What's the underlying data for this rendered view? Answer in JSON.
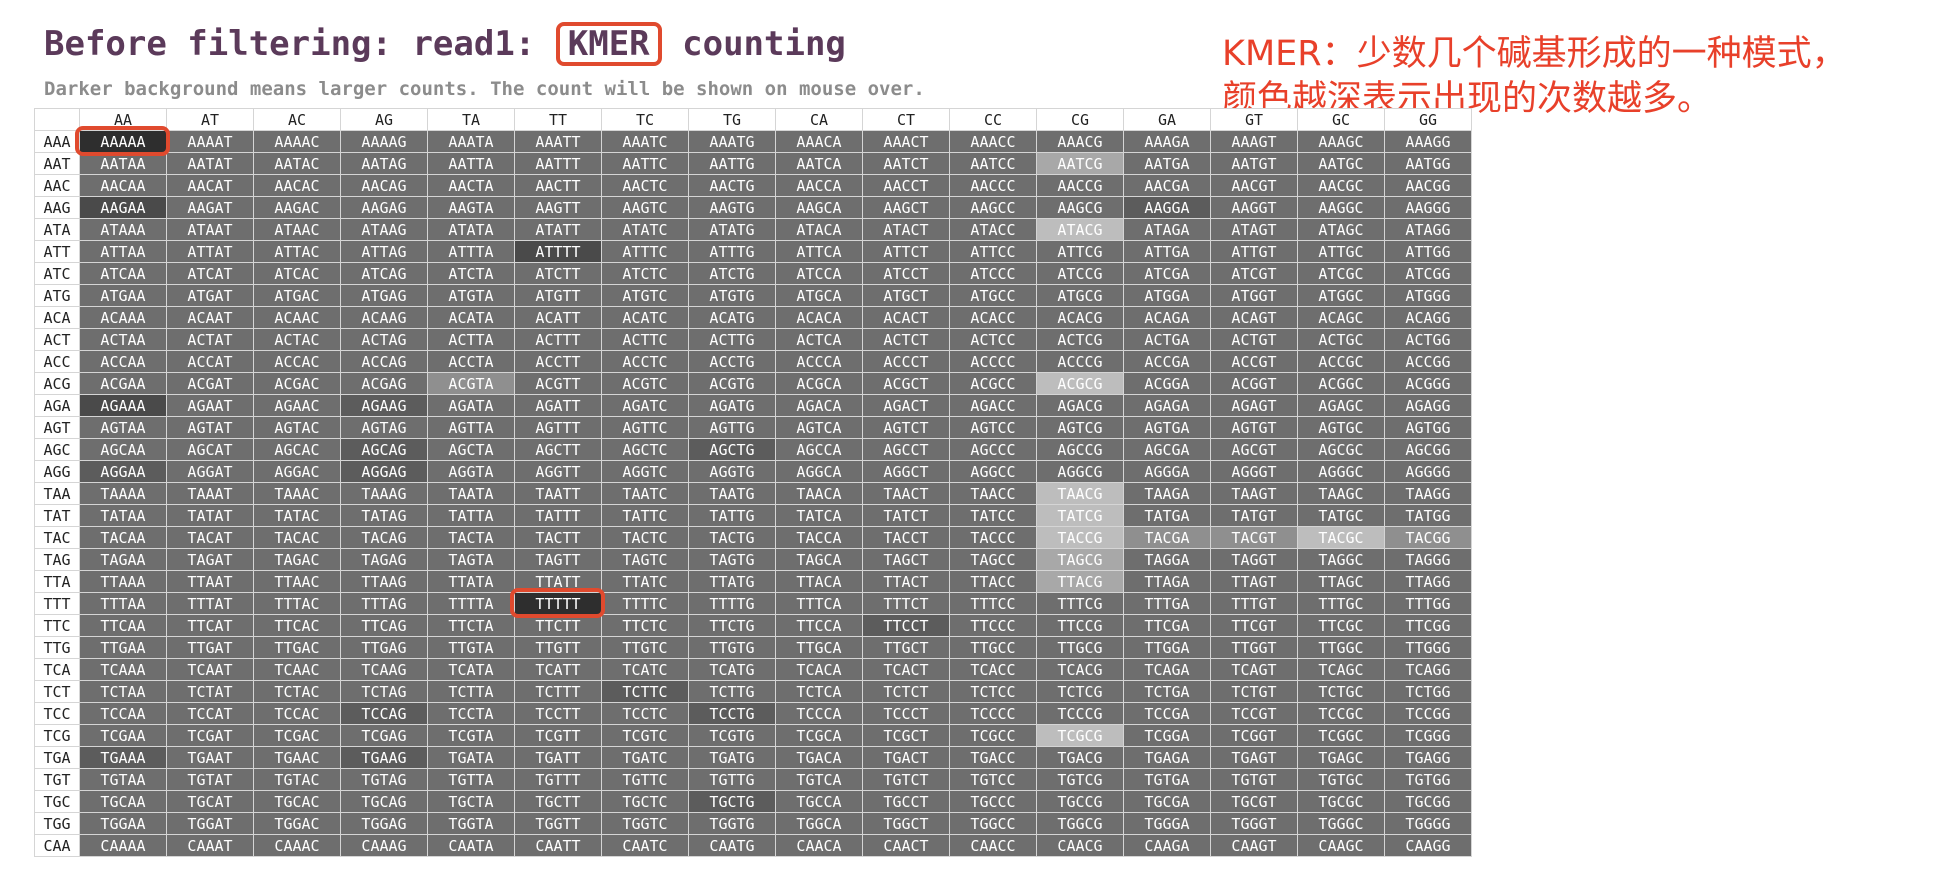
{
  "header": {
    "title_prefix": "Before filtering: read1:",
    "title_kmer": "KMER",
    "title_suffix": "counting",
    "subtitle": "Darker background means larger counts. The count will be shown on mouse over."
  },
  "annotation": {
    "line1": "KMER：少数几个碱基形成的一种模式，",
    "line2": "颜色越深表示出现的次数越多。"
  },
  "kmer_table": {
    "columns": [
      "AA",
      "AT",
      "AC",
      "AG",
      "TA",
      "TT",
      "TC",
      "TG",
      "CA",
      "CT",
      "CC",
      "CG",
      "GA",
      "GT",
      "GC",
      "GG"
    ],
    "rows": [
      "AAA",
      "AAT",
      "AAC",
      "AAG",
      "ATA",
      "ATT",
      "ATC",
      "ATG",
      "ACA",
      "ACT",
      "ACC",
      "ACG",
      "AGA",
      "AGT",
      "AGC",
      "AGG",
      "TAA",
      "TAT",
      "TAC",
      "TAG",
      "TTA",
      "TTT",
      "TTC",
      "TTG",
      "TCA",
      "TCT",
      "TCC",
      "TCG",
      "TGA",
      "TGT",
      "TGC",
      "TGG",
      "CAA"
    ],
    "shades": [
      "0000000000000000000000000000000000",
      "..."
    ],
    "shade_rows": [
      [
        0,
        3,
        3,
        3,
        3,
        3,
        3,
        3,
        3,
        3,
        3,
        3,
        3,
        3,
        3,
        3
      ],
      [
        3,
        3,
        3,
        3,
        3,
        3,
        3,
        3,
        3,
        3,
        3,
        5,
        3,
        3,
        3,
        3
      ],
      [
        3,
        3,
        3,
        3,
        3,
        3,
        3,
        3,
        3,
        3,
        3,
        3,
        3,
        3,
        3,
        3
      ],
      [
        1,
        3,
        3,
        3,
        3,
        3,
        3,
        3,
        3,
        3,
        3,
        3,
        2,
        3,
        3,
        3
      ],
      [
        3,
        3,
        3,
        3,
        3,
        3,
        3,
        3,
        3,
        3,
        3,
        6,
        3,
        3,
        3,
        3
      ],
      [
        3,
        3,
        3,
        3,
        3,
        1,
        3,
        3,
        3,
        3,
        3,
        3,
        3,
        3,
        3,
        3
      ],
      [
        3,
        3,
        3,
        3,
        3,
        3,
        3,
        3,
        3,
        3,
        3,
        3,
        3,
        3,
        3,
        3
      ],
      [
        3,
        3,
        3,
        3,
        3,
        3,
        3,
        3,
        3,
        3,
        3,
        3,
        3,
        3,
        3,
        3
      ],
      [
        3,
        3,
        3,
        3,
        3,
        3,
        3,
        3,
        3,
        3,
        3,
        3,
        3,
        3,
        3,
        3
      ],
      [
        3,
        3,
        3,
        3,
        3,
        3,
        3,
        3,
        3,
        3,
        3,
        3,
        3,
        3,
        3,
        3
      ],
      [
        3,
        3,
        3,
        3,
        3,
        3,
        3,
        3,
        3,
        3,
        3,
        3,
        3,
        3,
        3,
        3
      ],
      [
        3,
        3,
        3,
        3,
        4,
        3,
        3,
        3,
        3,
        3,
        3,
        6,
        3,
        3,
        3,
        3
      ],
      [
        1,
        3,
        3,
        2,
        3,
        3,
        3,
        3,
        3,
        3,
        3,
        3,
        3,
        3,
        3,
        3
      ],
      [
        3,
        3,
        3,
        3,
        3,
        3,
        3,
        3,
        3,
        3,
        3,
        3,
        3,
        3,
        3,
        3
      ],
      [
        3,
        3,
        3,
        2,
        3,
        3,
        3,
        2,
        3,
        3,
        3,
        3,
        3,
        3,
        3,
        3
      ],
      [
        2,
        3,
        3,
        2,
        3,
        3,
        3,
        3,
        3,
        3,
        3,
        3,
        3,
        3,
        3,
        3
      ],
      [
        3,
        3,
        3,
        3,
        3,
        3,
        3,
        3,
        3,
        3,
        3,
        6,
        3,
        3,
        3,
        3
      ],
      [
        3,
        3,
        3,
        3,
        3,
        3,
        3,
        3,
        3,
        3,
        3,
        6,
        3,
        3,
        3,
        3
      ],
      [
        3,
        3,
        3,
        3,
        3,
        3,
        3,
        3,
        3,
        3,
        3,
        6,
        4,
        4,
        6,
        4
      ],
      [
        3,
        3,
        3,
        3,
        3,
        3,
        3,
        3,
        3,
        3,
        3,
        5,
        3,
        3,
        3,
        3
      ],
      [
        3,
        3,
        3,
        3,
        3,
        3,
        3,
        3,
        3,
        3,
        3,
        5,
        3,
        3,
        3,
        3
      ],
      [
        3,
        3,
        3,
        3,
        3,
        0,
        3,
        3,
        3,
        3,
        3,
        3,
        3,
        3,
        3,
        3
      ],
      [
        3,
        3,
        3,
        3,
        3,
        3,
        3,
        3,
        3,
        2,
        3,
        3,
        3,
        3,
        3,
        3
      ],
      [
        3,
        3,
        3,
        3,
        3,
        3,
        3,
        3,
        3,
        3,
        3,
        3,
        3,
        3,
        3,
        3
      ],
      [
        3,
        3,
        3,
        3,
        3,
        3,
        3,
        3,
        3,
        3,
        3,
        3,
        3,
        3,
        3,
        3
      ],
      [
        3,
        3,
        3,
        3,
        3,
        3,
        2,
        3,
        3,
        3,
        3,
        3,
        3,
        3,
        3,
        3
      ],
      [
        3,
        3,
        3,
        2,
        3,
        3,
        3,
        2,
        3,
        3,
        3,
        3,
        3,
        3,
        3,
        3
      ],
      [
        3,
        3,
        3,
        3,
        3,
        3,
        3,
        3,
        3,
        3,
        3,
        6,
        3,
        3,
        3,
        3
      ],
      [
        2,
        3,
        3,
        2,
        3,
        3,
        3,
        3,
        3,
        3,
        3,
        3,
        3,
        3,
        3,
        3
      ],
      [
        3,
        3,
        3,
        3,
        3,
        3,
        3,
        3,
        3,
        3,
        3,
        3,
        3,
        3,
        3,
        3
      ],
      [
        3,
        3,
        3,
        3,
        3,
        3,
        3,
        2,
        3,
        3,
        3,
        3,
        3,
        3,
        3,
        3
      ],
      [
        3,
        3,
        3,
        3,
        3,
        3,
        3,
        3,
        3,
        3,
        3,
        3,
        3,
        3,
        3,
        3
      ],
      [
        3,
        3,
        3,
        3,
        3,
        3,
        3,
        3,
        3,
        3,
        3,
        3,
        3,
        3,
        3,
        3
      ]
    ],
    "shade_colors": [
      "#2e2e2e",
      "#4a4a4a",
      "#5c5c5c",
      "#6e6e6e",
      "#8f8f8f",
      "#a8a8a8",
      "#bdbdbd"
    ],
    "highlighted_cells": [
      {
        "row": "AAA",
        "col": "AA"
      },
      {
        "row": "TTT",
        "col": "TT"
      }
    ]
  }
}
